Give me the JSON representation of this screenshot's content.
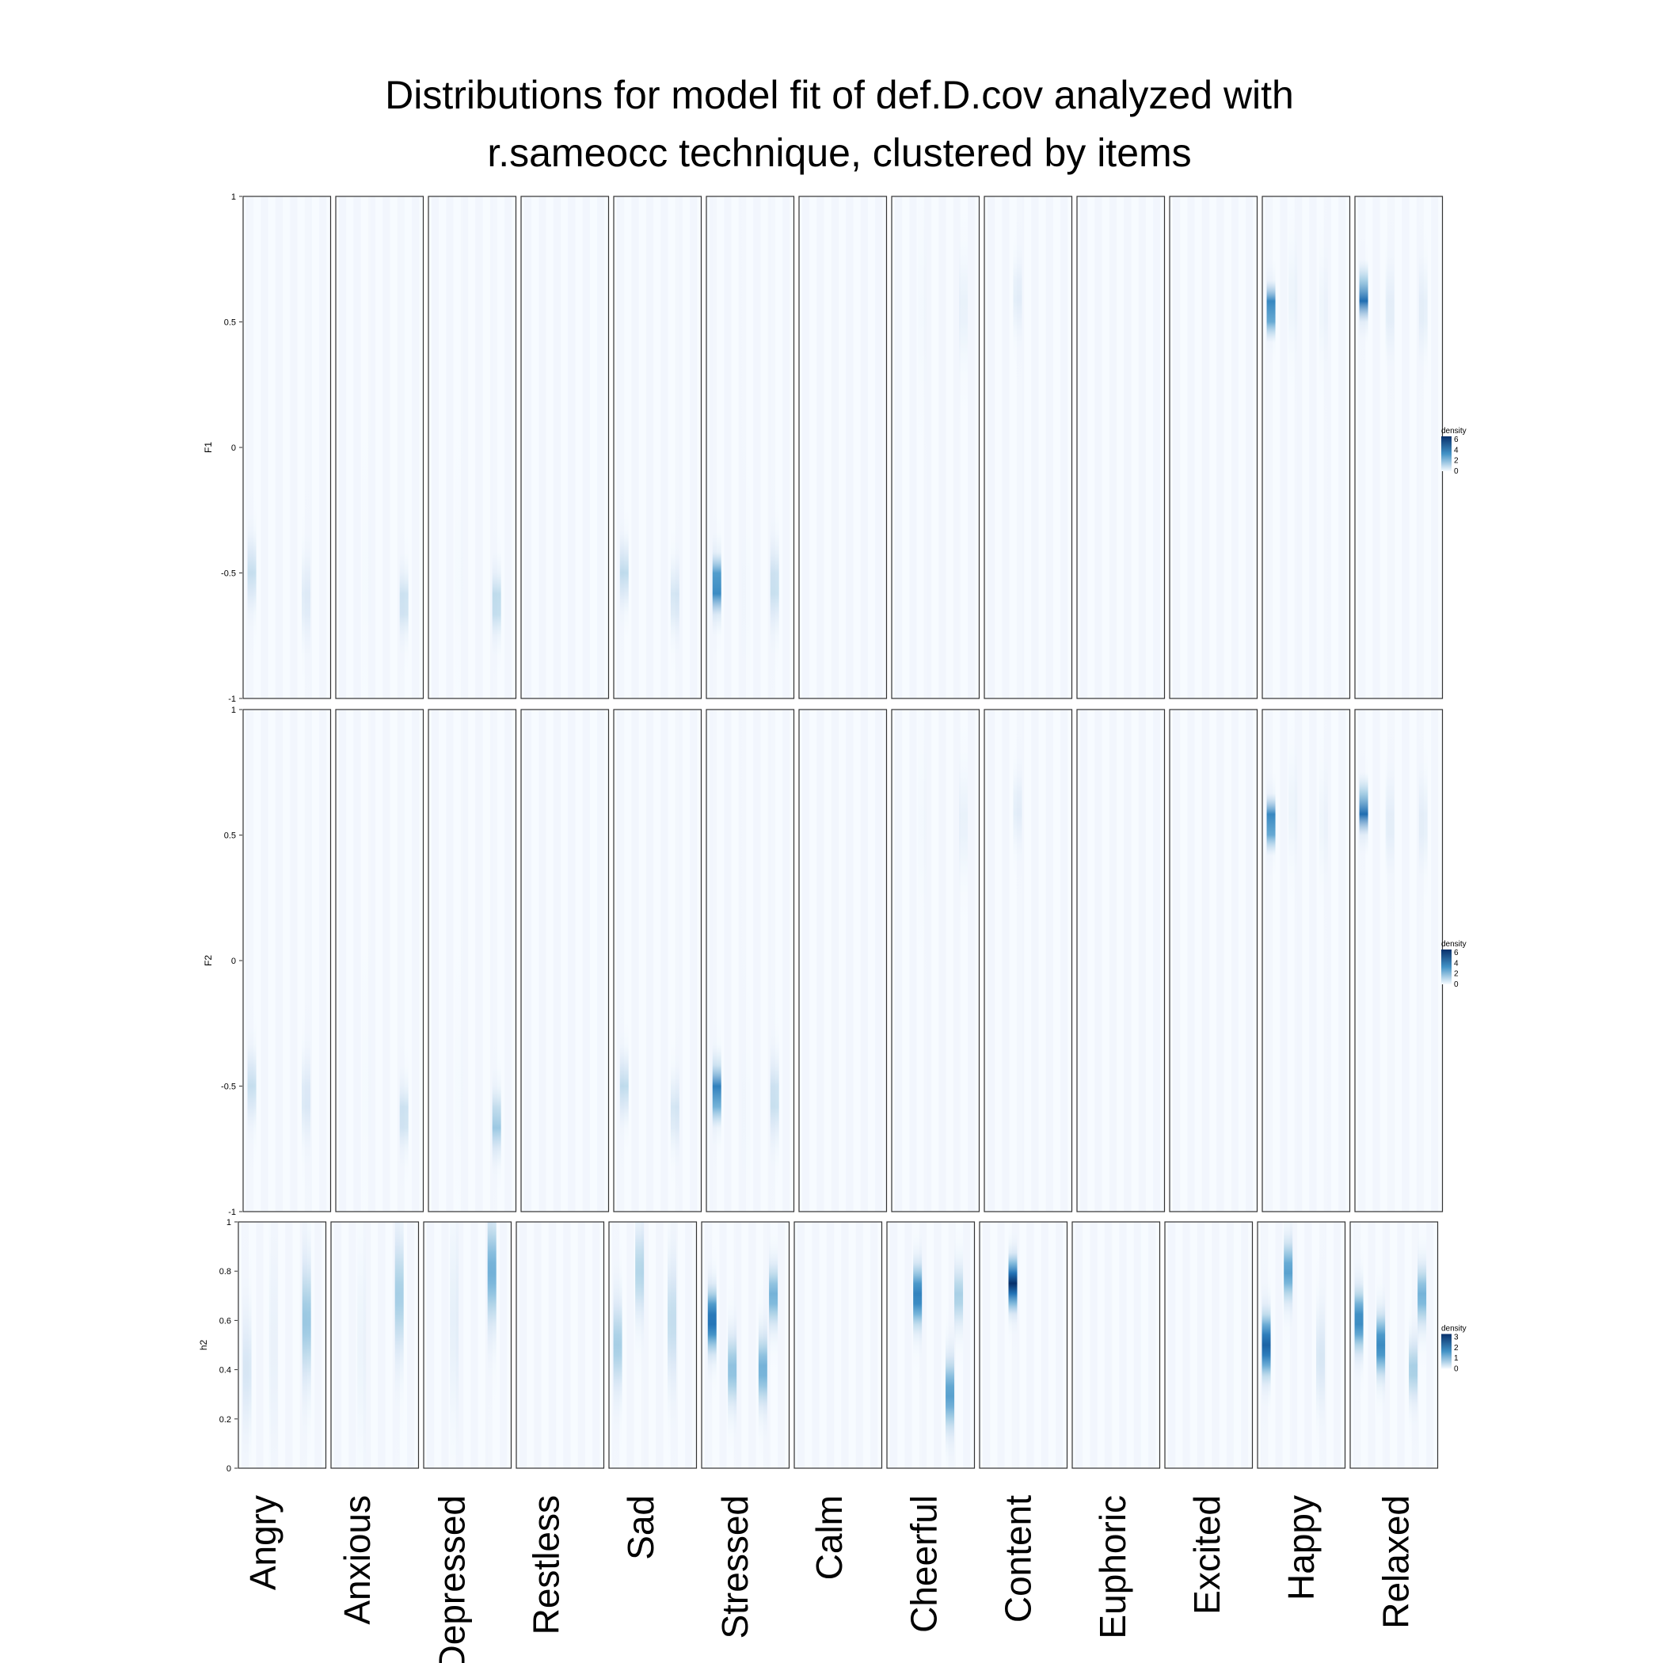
{
  "chart_data": {
    "type": "heatmap",
    "title": "Distributions for model fit of def.D.cov analyzed with\nr.sameocc technique, clustered by items",
    "title_lines": [
      "Distributions for model fit of def.D.cov analyzed with",
      "r.sameocc technique, clustered by items"
    ],
    "categories": [
      "Angry",
      "Anxious",
      "Depressed",
      "Restless",
      "Sad",
      "Stressed",
      "Calm",
      "Cheerful",
      "Content",
      "Euphoric",
      "Excited",
      "Happy",
      "Relaxed"
    ],
    "colors": {
      "low": "#f7fbff",
      "high": "#08306b",
      "mid": "#4292c6",
      "panel_border": "#333333"
    },
    "panels": [
      {
        "ylabel": "F1",
        "ylim": [
          -1,
          1
        ],
        "ytick_labels": [
          "-1",
          "-0.5",
          "0",
          "0.5",
          "1"
        ],
        "yticks": [
          -1,
          -0.5,
          0,
          0.5,
          1
        ],
        "legend": {
          "title": "density",
          "labels": [
            "6",
            "4",
            "2",
            "0"
          ],
          "values": [
            6,
            4,
            2,
            0
          ],
          "max": 6.5
        },
        "columns": {
          "Angry": [
            {
              "x": 0.1,
              "mu": -0.5,
              "sd": 0.1,
              "d": 2.6
            },
            {
              "x": 0.72,
              "mu": -0.6,
              "sd": 0.12,
              "d": 1.8
            }
          ],
          "Anxious": [
            {
              "x": 0.78,
              "mu": -0.62,
              "sd": 0.09,
              "d": 2.6
            },
            {
              "x": 0.35,
              "mu": -0.5,
              "sd": 0.25,
              "d": 0.35
            }
          ],
          "Depressed": [
            {
              "x": 0.78,
              "mu": -0.62,
              "sd": 0.09,
              "d": 3.0
            },
            {
              "x": 0.35,
              "mu": -0.5,
              "sd": 0.25,
              "d": 0.35
            }
          ],
          "Restless": [],
          "Sad": [
            {
              "x": 0.12,
              "mu": -0.5,
              "sd": 0.09,
              "d": 2.8
            },
            {
              "x": 0.7,
              "mu": -0.6,
              "sd": 0.1,
              "d": 2.2
            }
          ],
          "Stressed": [
            {
              "x": 0.12,
              "mu": -0.55,
              "sd": 0.08,
              "d": 5.5
            },
            {
              "x": 0.78,
              "mu": -0.55,
              "sd": 0.12,
              "d": 2.6
            },
            {
              "x": 0.45,
              "mu": -0.6,
              "sd": 0.25,
              "d": 0.4
            }
          ],
          "Calm": [],
          "Cheerful": [
            {
              "x": 0.82,
              "mu": 0.55,
              "sd": 0.15,
              "d": 1.3
            },
            {
              "x": 0.35,
              "mu": 0.55,
              "sd": 0.25,
              "d": 0.5
            }
          ],
          "Content": [
            {
              "x": 0.38,
              "mu": 0.6,
              "sd": 0.1,
              "d": 1.6
            }
          ],
          "Euphoric": [],
          "Excited": [],
          "Happy": [
            {
              "x": 0.1,
              "mu": 0.55,
              "sd": 0.06,
              "d": 6.0
            },
            {
              "x": 0.35,
              "mu": 0.6,
              "sd": 0.15,
              "d": 1.0
            },
            {
              "x": 0.7,
              "mu": 0.55,
              "sd": 0.15,
              "d": 0.9
            }
          ],
          "Relaxed": [
            {
              "x": 0.1,
              "mu": 0.6,
              "sd": 0.06,
              "d": 6.0
            },
            {
              "x": 0.4,
              "mu": 0.55,
              "sd": 0.12,
              "d": 1.5
            },
            {
              "x": 0.78,
              "mu": 0.55,
              "sd": 0.12,
              "d": 1.5
            }
          ]
        }
      },
      {
        "ylabel": "F2",
        "ylim": [
          -1,
          1
        ],
        "ytick_labels": [
          "-1",
          "-0.5",
          "0",
          "0.5",
          "1"
        ],
        "yticks": [
          -1,
          -0.5,
          0,
          0.5,
          1
        ],
        "legend": {
          "title": "density",
          "labels": [
            "6",
            "4",
            "2",
            "0"
          ],
          "values": [
            6,
            4,
            2,
            0
          ],
          "max": 6.5
        },
        "columns": {
          "Angry": [
            {
              "x": 0.1,
              "mu": -0.5,
              "sd": 0.1,
              "d": 2.6
            },
            {
              "x": 0.72,
              "mu": -0.55,
              "sd": 0.12,
              "d": 2.0
            }
          ],
          "Anxious": [
            {
              "x": 0.78,
              "mu": -0.62,
              "sd": 0.09,
              "d": 2.6
            },
            {
              "x": 0.35,
              "mu": -0.5,
              "sd": 0.25,
              "d": 0.35
            }
          ],
          "Depressed": [
            {
              "x": 0.78,
              "mu": -0.65,
              "sd": 0.09,
              "d": 3.5
            },
            {
              "x": 0.35,
              "mu": -0.5,
              "sd": 0.25,
              "d": 0.35
            }
          ],
          "Restless": [],
          "Sad": [
            {
              "x": 0.12,
              "mu": -0.5,
              "sd": 0.09,
              "d": 2.8
            },
            {
              "x": 0.7,
              "mu": -0.6,
              "sd": 0.1,
              "d": 2.2
            }
          ],
          "Stressed": [
            {
              "x": 0.12,
              "mu": -0.52,
              "sd": 0.08,
              "d": 5.5
            },
            {
              "x": 0.78,
              "mu": -0.55,
              "sd": 0.12,
              "d": 2.6
            },
            {
              "x": 0.45,
              "mu": -0.6,
              "sd": 0.25,
              "d": 0.4
            }
          ],
          "Calm": [],
          "Cheerful": [
            {
              "x": 0.82,
              "mu": 0.55,
              "sd": 0.15,
              "d": 1.3
            },
            {
              "x": 0.35,
              "mu": 0.55,
              "sd": 0.25,
              "d": 0.5
            }
          ],
          "Content": [
            {
              "x": 0.38,
              "mu": 0.6,
              "sd": 0.1,
              "d": 1.6
            }
          ],
          "Euphoric": [],
          "Excited": [],
          "Happy": [
            {
              "x": 0.1,
              "mu": 0.55,
              "sd": 0.06,
              "d": 6.0
            },
            {
              "x": 0.35,
              "mu": 0.6,
              "sd": 0.15,
              "d": 1.0
            },
            {
              "x": 0.7,
              "mu": 0.55,
              "sd": 0.15,
              "d": 0.9
            }
          ],
          "Relaxed": [
            {
              "x": 0.1,
              "mu": 0.6,
              "sd": 0.06,
              "d": 6.0
            },
            {
              "x": 0.4,
              "mu": 0.55,
              "sd": 0.12,
              "d": 1.5
            },
            {
              "x": 0.78,
              "mu": 0.55,
              "sd": 0.12,
              "d": 1.5
            }
          ]
        }
      },
      {
        "ylabel": "h2",
        "ylim": [
          0,
          1
        ],
        "ytick_labels": [
          "0",
          "0.2",
          "0.4",
          "0.6",
          "0.8",
          "1"
        ],
        "yticks": [
          0,
          0.2,
          0.4,
          0.6,
          0.8,
          1
        ],
        "legend": {
          "title": "density",
          "labels": [
            "3",
            "2",
            "1",
            "0"
          ],
          "values": [
            3,
            2,
            1,
            0
          ],
          "max": 3.2
        },
        "columns": {
          "Angry": [
            {
              "x": 0.1,
              "mu": 0.4,
              "sd": 0.18,
              "d": 1.0
            },
            {
              "x": 0.78,
              "mu": 0.6,
              "sd": 0.2,
              "d": 1.7
            },
            {
              "x": 0.4,
              "mu": 0.5,
              "sd": 0.3,
              "d": 0.5
            }
          ],
          "Anxious": [
            {
              "x": 0.78,
              "mu": 0.7,
              "sd": 0.2,
              "d": 1.6
            },
            {
              "x": 0.35,
              "mu": 0.5,
              "sd": 0.3,
              "d": 0.5
            }
          ],
          "Depressed": [
            {
              "x": 0.78,
              "mu": 0.8,
              "sd": 0.18,
              "d": 2.0
            },
            {
              "x": 0.35,
              "mu": 0.6,
              "sd": 0.3,
              "d": 0.7
            }
          ],
          "Restless": [],
          "Sad": [
            {
              "x": 0.1,
              "mu": 0.5,
              "sd": 0.15,
              "d": 1.6
            },
            {
              "x": 0.35,
              "mu": 0.8,
              "sd": 0.15,
              "d": 1.5
            },
            {
              "x": 0.72,
              "mu": 0.6,
              "sd": 0.2,
              "d": 1.3
            }
          ],
          "Stressed": [
            {
              "x": 0.12,
              "mu": 0.6,
              "sd": 0.1,
              "d": 2.8
            },
            {
              "x": 0.35,
              "mu": 0.4,
              "sd": 0.12,
              "d": 1.8
            },
            {
              "x": 0.7,
              "mu": 0.4,
              "sd": 0.12,
              "d": 2.0
            },
            {
              "x": 0.82,
              "mu": 0.7,
              "sd": 0.1,
              "d": 2.0
            }
          ],
          "Calm": [],
          "Cheerful": [
            {
              "x": 0.35,
              "mu": 0.7,
              "sd": 0.1,
              "d": 2.6
            },
            {
              "x": 0.72,
              "mu": 0.3,
              "sd": 0.12,
              "d": 2.2
            },
            {
              "x": 0.82,
              "mu": 0.7,
              "sd": 0.1,
              "d": 1.6
            }
          ],
          "Content": [
            {
              "x": 0.38,
              "mu": 0.75,
              "sd": 0.08,
              "d": 3.2
            }
          ],
          "Euphoric": [],
          "Excited": [],
          "Happy": [
            {
              "x": 0.1,
              "mu": 0.5,
              "sd": 0.1,
              "d": 2.9
            },
            {
              "x": 0.35,
              "mu": 0.8,
              "sd": 0.1,
              "d": 2.2
            },
            {
              "x": 0.72,
              "mu": 0.45,
              "sd": 0.15,
              "d": 1.0
            }
          ],
          "Relaxed": [
            {
              "x": 0.1,
              "mu": 0.6,
              "sd": 0.1,
              "d": 2.5
            },
            {
              "x": 0.35,
              "mu": 0.5,
              "sd": 0.1,
              "d": 2.5
            },
            {
              "x": 0.72,
              "mu": 0.4,
              "sd": 0.1,
              "d": 1.6
            },
            {
              "x": 0.82,
              "mu": 0.7,
              "sd": 0.1,
              "d": 2.0
            }
          ]
        }
      }
    ]
  }
}
